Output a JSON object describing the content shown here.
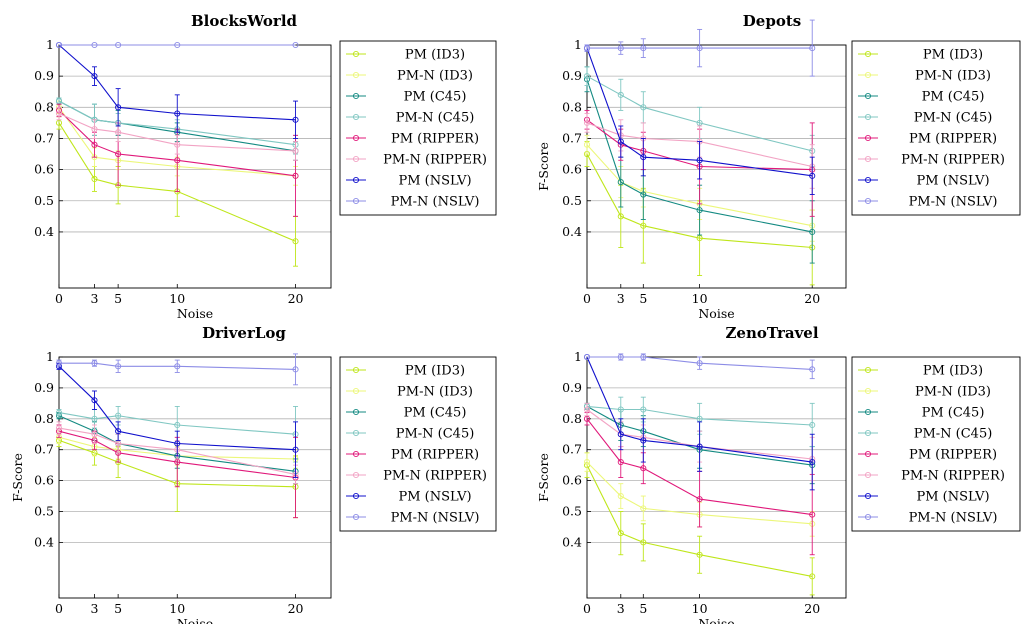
{
  "figure": {
    "colors": {
      "PM (ID3)": "#bfe61a",
      "PM-N (ID3)": "#ecf77a",
      "PM (C45)": "#138a82",
      "PM-N (C45)": "#80c7c2",
      "PM (RIPPER)": "#e0187a",
      "PM-N (RIPPER)": "#f2a3c4",
      "PM (NSLV)": "#1010cc",
      "PM-N (NSLV)": "#8c8ce6"
    },
    "grid_color": "#b3b3b3"
  },
  "chart_data": [
    {
      "type": "line",
      "title": "BlocksWorld",
      "xlabel": "Noise",
      "ylabel": "",
      "x": [
        0,
        3,
        5,
        10,
        20
      ],
      "xlim": [
        0,
        23
      ],
      "ylim": [
        0.22,
        1.0
      ],
      "yticks": [
        0.4,
        0.5,
        0.6,
        0.7,
        0.8,
        0.9,
        1
      ],
      "ytick_labels": [
        "0.4",
        "0.5",
        "0.6",
        "0.7",
        "0.8",
        "0.9",
        "1"
      ],
      "grid": true,
      "legend": "right",
      "series": [
        {
          "name": "PM (ID3)",
          "values": [
            0.75,
            0.57,
            0.55,
            0.53,
            0.37
          ],
          "errors": [
            0.02,
            0.04,
            0.06,
            0.08,
            0.08
          ]
        },
        {
          "name": "PM-N (ID3)",
          "values": [
            0.8,
            0.64,
            0.63,
            0.61,
            0.58
          ],
          "errors": [
            0.02,
            0.03,
            0.03,
            0.03,
            0.03
          ]
        },
        {
          "name": "PM (C45)",
          "values": [
            0.82,
            0.76,
            0.75,
            0.72,
            0.66
          ],
          "errors": [
            0.01,
            0.05,
            0.04,
            0.03,
            0.03
          ]
        },
        {
          "name": "PM-N (C45)",
          "values": [
            0.82,
            0.76,
            0.75,
            0.73,
            0.68
          ],
          "errors": [
            0.01,
            0.05,
            0.03,
            0.03,
            0.03
          ]
        },
        {
          "name": "PM (RIPPER)",
          "values": [
            0.79,
            0.68,
            0.65,
            0.63,
            0.58
          ],
          "errors": [
            0.02,
            0.04,
            0.1,
            0.1,
            0.13
          ]
        },
        {
          "name": "PM-N (RIPPER)",
          "values": [
            0.78,
            0.73,
            0.72,
            0.68,
            0.66
          ],
          "errors": [
            0.02,
            0.03,
            0.03,
            0.03,
            0.03
          ]
        },
        {
          "name": "PM (NSLV)",
          "values": [
            1.0,
            0.9,
            0.8,
            0.78,
            0.76
          ],
          "errors": [
            0.0,
            0.03,
            0.06,
            0.06,
            0.06
          ]
        },
        {
          "name": "PM-N (NSLV)",
          "values": [
            1.0,
            1.0,
            1.0,
            1.0,
            1.0
          ],
          "errors": [
            0.0,
            0.0,
            0.0,
            0.0,
            0.0
          ]
        }
      ]
    },
    {
      "type": "line",
      "title": "Depots",
      "xlabel": "Noise",
      "ylabel": "F-Score",
      "x": [
        0,
        3,
        5,
        10,
        20
      ],
      "xlim": [
        0,
        23
      ],
      "ylim": [
        0.22,
        1.0
      ],
      "yticks": [
        0.4,
        0.5,
        0.6,
        0.7,
        0.8,
        0.9,
        1
      ],
      "ytick_labels": [
        "0.4",
        "0.5",
        "0.6",
        "0.7",
        "0.8",
        "0.9",
        "1"
      ],
      "grid": true,
      "legend": "right",
      "series": [
        {
          "name": "PM (ID3)",
          "values": [
            0.65,
            0.45,
            0.42,
            0.38,
            0.35
          ],
          "errors": [
            0.04,
            0.1,
            0.12,
            0.12,
            0.12
          ]
        },
        {
          "name": "PM-N (ID3)",
          "values": [
            0.68,
            0.56,
            0.53,
            0.49,
            0.42
          ],
          "errors": [
            0.03,
            0.05,
            0.05,
            0.05,
            0.05
          ]
        },
        {
          "name": "PM (C45)",
          "values": [
            0.89,
            0.56,
            0.52,
            0.47,
            0.4
          ],
          "errors": [
            0.04,
            0.08,
            0.08,
            0.08,
            0.1
          ]
        },
        {
          "name": "PM-N (C45)",
          "values": [
            0.9,
            0.84,
            0.8,
            0.75,
            0.66
          ],
          "errors": [
            0.03,
            0.05,
            0.05,
            0.05,
            0.05
          ]
        },
        {
          "name": "PM (RIPPER)",
          "values": [
            0.76,
            0.68,
            0.66,
            0.61,
            0.6
          ],
          "errors": [
            0.03,
            0.05,
            0.06,
            0.12,
            0.15
          ]
        },
        {
          "name": "PM-N (RIPPER)",
          "values": [
            0.75,
            0.71,
            0.7,
            0.69,
            0.61
          ],
          "errors": [
            0.03,
            0.05,
            0.05,
            0.05,
            0.07
          ]
        },
        {
          "name": "PM (NSLV)",
          "values": [
            0.99,
            0.69,
            0.64,
            0.63,
            0.58
          ],
          "errors": [
            0.01,
            0.05,
            0.06,
            0.06,
            0.06
          ]
        },
        {
          "name": "PM-N (NSLV)",
          "values": [
            0.99,
            0.99,
            0.99,
            0.99,
            0.99
          ],
          "errors": [
            0.01,
            0.02,
            0.03,
            0.06,
            0.09
          ]
        }
      ]
    },
    {
      "type": "line",
      "title": "DriverLog",
      "xlabel": "Noise",
      "ylabel": "F-Score",
      "x": [
        0,
        3,
        5,
        10,
        20
      ],
      "xlim": [
        0,
        23
      ],
      "ylim": [
        0.22,
        1.0
      ],
      "yticks": [
        0.4,
        0.5,
        0.6,
        0.7,
        0.8,
        0.9,
        1
      ],
      "ytick_labels": [
        "0.4",
        "0.5",
        "0.6",
        "0.7",
        "0.8",
        "0.9",
        "1"
      ],
      "grid": true,
      "legend": "right",
      "series": [
        {
          "name": "PM (ID3)",
          "values": [
            0.73,
            0.69,
            0.66,
            0.59,
            0.58
          ],
          "errors": [
            0.02,
            0.04,
            0.05,
            0.09,
            0.1
          ]
        },
        {
          "name": "PM-N (ID3)",
          "values": [
            0.74,
            0.71,
            0.7,
            0.68,
            0.67
          ],
          "errors": [
            0.02,
            0.03,
            0.03,
            0.03,
            0.03
          ]
        },
        {
          "name": "PM (C45)",
          "values": [
            0.81,
            0.76,
            0.72,
            0.68,
            0.63
          ],
          "errors": [
            0.01,
            0.03,
            0.03,
            0.04,
            0.04
          ]
        },
        {
          "name": "PM-N (C45)",
          "values": [
            0.82,
            0.8,
            0.81,
            0.78,
            0.75
          ],
          "errors": [
            0.01,
            0.03,
            0.03,
            0.06,
            0.09
          ]
        },
        {
          "name": "PM (RIPPER)",
          "values": [
            0.76,
            0.73,
            0.69,
            0.66,
            0.61
          ],
          "errors": [
            0.02,
            0.03,
            0.03,
            0.08,
            0.13
          ]
        },
        {
          "name": "PM-N (RIPPER)",
          "values": [
            0.77,
            0.75,
            0.72,
            0.7,
            0.62
          ],
          "errors": [
            0.02,
            0.03,
            0.03,
            0.03,
            0.03
          ]
        },
        {
          "name": "PM (NSLV)",
          "values": [
            0.97,
            0.86,
            0.76,
            0.72,
            0.7
          ],
          "errors": [
            0.01,
            0.03,
            0.03,
            0.04,
            0.09
          ]
        },
        {
          "name": "PM-N (NSLV)",
          "values": [
            0.98,
            0.98,
            0.97,
            0.97,
            0.96
          ],
          "errors": [
            0.01,
            0.01,
            0.02,
            0.02,
            0.05
          ]
        }
      ]
    },
    {
      "type": "line",
      "title": "ZenoTravel",
      "xlabel": "Noise",
      "ylabel": "F-Score",
      "x": [
        0,
        3,
        5,
        10,
        20
      ],
      "xlim": [
        0,
        23
      ],
      "ylim": [
        0.22,
        1.0
      ],
      "yticks": [
        0.4,
        0.5,
        0.6,
        0.7,
        0.8,
        0.9,
        1
      ],
      "ytick_labels": [
        "0.4",
        "0.5",
        "0.6",
        "0.7",
        "0.8",
        "0.9",
        "1"
      ],
      "grid": true,
      "legend": "right",
      "series": [
        {
          "name": "PM (ID3)",
          "values": [
            0.65,
            0.43,
            0.4,
            0.36,
            0.29
          ],
          "errors": [
            0.04,
            0.07,
            0.06,
            0.06,
            0.06
          ]
        },
        {
          "name": "PM-N (ID3)",
          "values": [
            0.66,
            0.55,
            0.51,
            0.49,
            0.46
          ],
          "errors": [
            0.03,
            0.04,
            0.04,
            0.04,
            0.04
          ]
        },
        {
          "name": "PM (C45)",
          "values": [
            0.84,
            0.78,
            0.76,
            0.7,
            0.65
          ],
          "errors": [
            0.01,
            0.05,
            0.05,
            0.06,
            0.06
          ]
        },
        {
          "name": "PM-N (C45)",
          "values": [
            0.84,
            0.83,
            0.83,
            0.8,
            0.78
          ],
          "errors": [
            0.01,
            0.04,
            0.04,
            0.05,
            0.07
          ]
        },
        {
          "name": "PM (RIPPER)",
          "values": [
            0.8,
            0.66,
            0.64,
            0.54,
            0.49
          ],
          "errors": [
            0.02,
            0.05,
            0.05,
            0.09,
            0.13
          ]
        },
        {
          "name": "PM-N (RIPPER)",
          "values": [
            0.83,
            0.75,
            0.74,
            0.71,
            0.67
          ],
          "errors": [
            0.02,
            0.04,
            0.04,
            0.05,
            0.07
          ]
        },
        {
          "name": "PM (NSLV)",
          "values": [
            1.0,
            0.75,
            0.73,
            0.71,
            0.66
          ],
          "errors": [
            0.0,
            0.05,
            0.07,
            0.08,
            0.09
          ]
        },
        {
          "name": "PM-N (NSLV)",
          "values": [
            1.0,
            1.0,
            1.0,
            0.98,
            0.96
          ],
          "errors": [
            0.0,
            0.01,
            0.01,
            0.02,
            0.03
          ]
        }
      ]
    }
  ]
}
